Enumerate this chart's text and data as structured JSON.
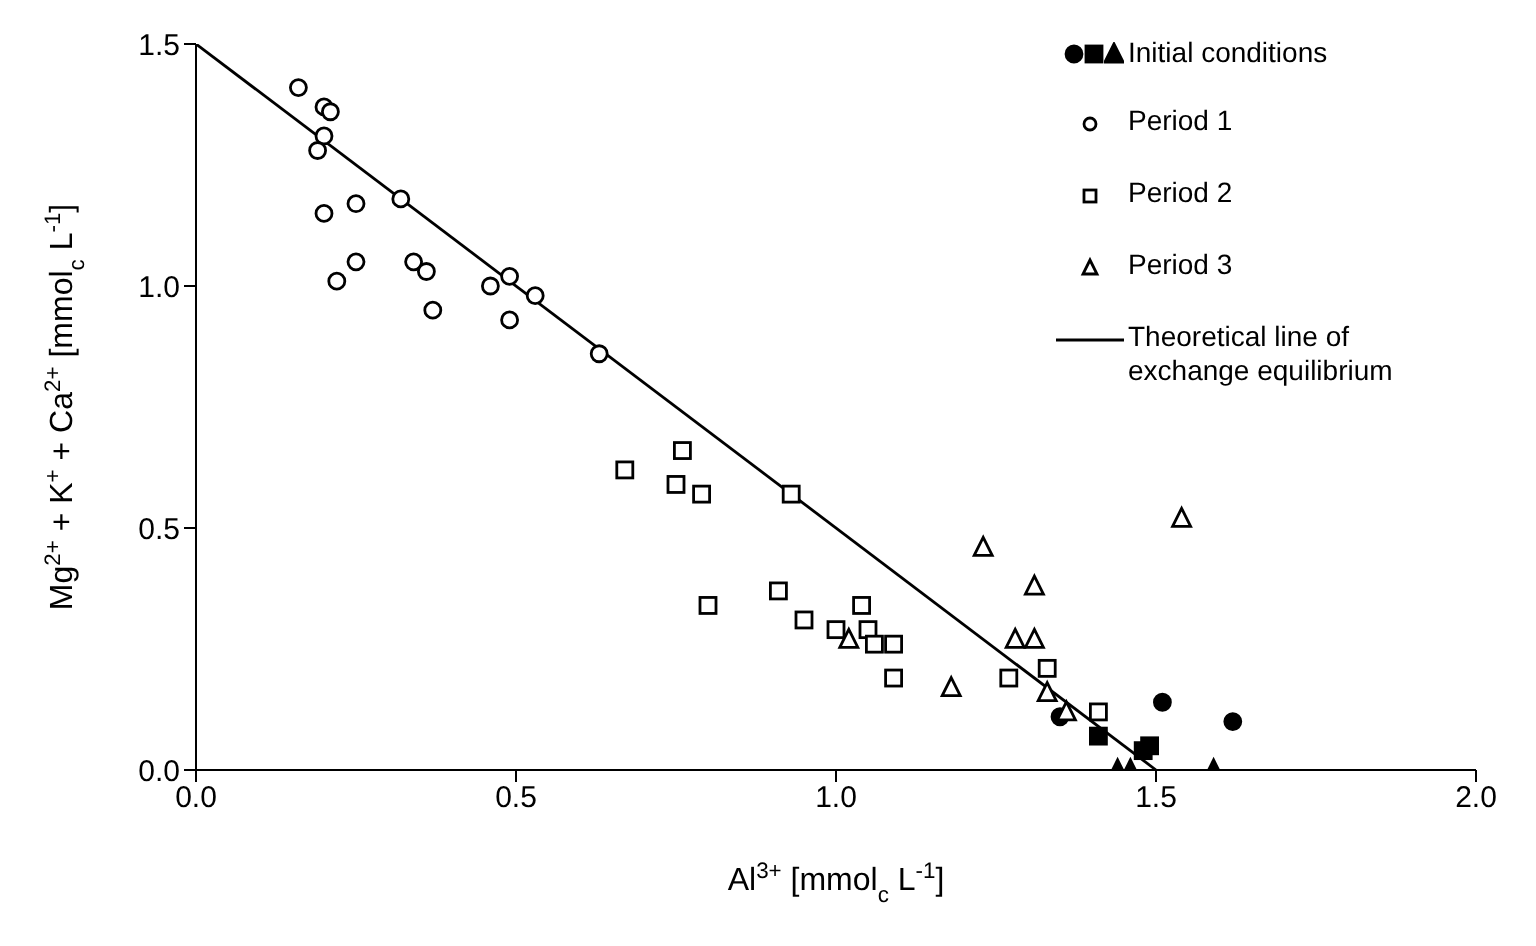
{
  "chart_data": {
    "type": "scatter",
    "xlabel": "Al$^{3+}$ [mmol$_{c}$ L$^{-1}$]",
    "ylabel": "Mg$^{2+}$ + K$^{+}$ + Ca$^{2+}$ [mmol$_{c}$ L$^{-1}$]",
    "xlim": [
      0,
      2
    ],
    "ylim": [
      0,
      1.5
    ],
    "xticks": [
      {
        "value": 0,
        "label": "0.0"
      },
      {
        "value": 0.5,
        "label": "0.5"
      },
      {
        "value": 1,
        "label": "1.0"
      },
      {
        "value": 1.5,
        "label": "1.5"
      },
      {
        "value": 2,
        "label": "2.0"
      }
    ],
    "yticks": [
      {
        "value": 0,
        "label": "0.0"
      },
      {
        "value": 0.5,
        "label": "0.5"
      },
      {
        "value": 1,
        "label": "1.0"
      },
      {
        "value": 1.5,
        "label": "1.5"
      }
    ],
    "grid": false,
    "legend": "top right",
    "series": [
      {
        "marker": "circle",
        "color": "#000000",
        "x": [
          1.35,
          1.51,
          1.62
        ],
        "values": [
          0.11,
          0.14,
          0.1
        ]
      },
      {
        "marker": "square",
        "color": "#000000",
        "x": [
          1.41,
          1.49,
          1.48
        ],
        "values": [
          0.07,
          0.05,
          0.04
        ]
      },
      {
        "name": "Initial conditions",
        "marker": "triangle",
        "color": "#000000",
        "x": [
          1.44,
          1.46,
          1.59
        ],
        "values": [
          0,
          0,
          0
        ]
      },
      {
        "name": "Period 1",
        "marker": "circle",
        "color": "#000000",
        "x": [
          0.16,
          0.2,
          0.21,
          0.2,
          0.19,
          0.32,
          0.25,
          0.2,
          0.25,
          0.22,
          0.34,
          0.36,
          0.37,
          0.46,
          0.49,
          0.49,
          0.53,
          0.63
        ],
        "values": [
          1.41,
          1.37,
          1.36,
          1.31,
          1.28,
          1.18,
          1.17,
          1.15,
          1.05,
          1.01,
          1.05,
          1.03,
          0.95,
          1.0,
          1.02,
          0.93,
          0.98,
          0.86
        ]
      },
      {
        "name": "Period 2",
        "marker": "square",
        "color": "#000000",
        "x": [
          0.76,
          0.67,
          0.75,
          0.79,
          0.93,
          0.8,
          0.91,
          0.95,
          1.04,
          1.0,
          1.05,
          1.06,
          1.09,
          1.09,
          1.27,
          1.33,
          1.41
        ],
        "values": [
          0.66,
          0.62,
          0.59,
          0.57,
          0.57,
          0.34,
          0.37,
          0.31,
          0.34,
          0.29,
          0.29,
          0.26,
          0.26,
          0.19,
          0.19,
          0.21,
          0.12
        ]
      },
      {
        "name": "Period 3",
        "marker": "triangle",
        "color": "#000000",
        "x": [
          1.23,
          1.31,
          1.28,
          1.31,
          1.02,
          1.18,
          1.33,
          1.36,
          1.54
        ],
        "values": [
          0.46,
          0.38,
          0.27,
          0.27,
          0.27,
          0.17,
          0.16,
          0.12,
          0.52
        ]
      },
      {
        "name": "Theoretical line of exchange equilibrium",
        "type": "line",
        "marker": "none",
        "line_style": "solid",
        "color": "#000000",
        "x": [
          0,
          1.5
        ],
        "values": [
          1.5,
          0
        ]
      }
    ]
  }
}
